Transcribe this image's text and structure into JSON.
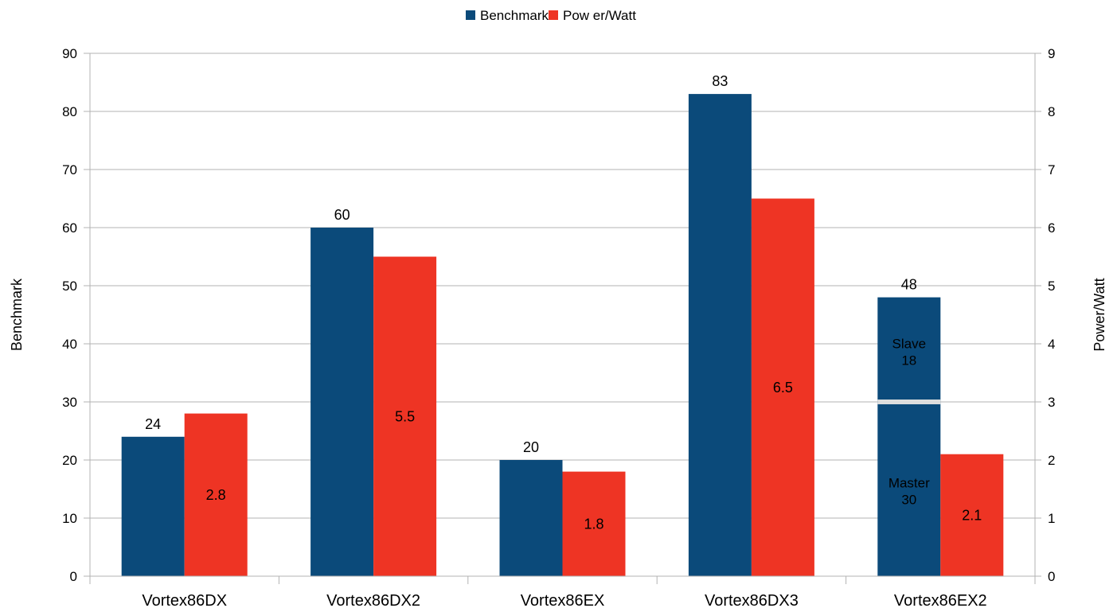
{
  "chart_data": {
    "type": "bar",
    "categories": [
      "Vortex86DX",
      "Vortex86DX2",
      "Vortex86EX",
      "Vortex86DX3",
      "Vortex86EX2"
    ],
    "series": [
      {
        "name": "Benchmark",
        "axis": "left",
        "color": "#0b4a7a",
        "values": [
          24,
          60,
          20,
          83,
          48
        ],
        "labels": [
          "24",
          "60",
          "20",
          "83",
          "48"
        ]
      },
      {
        "name": "Pow er/Watt",
        "axis": "right",
        "color": "#ee3424",
        "values": [
          2.8,
          5.5,
          1.8,
          6.5,
          2.1
        ],
        "labels": [
          "2.8",
          "5.5",
          "1.8",
          "6.5",
          "2.1"
        ]
      }
    ],
    "segments": [
      {
        "category": "Vortex86EX2",
        "series": "Benchmark",
        "parts": [
          {
            "name": "Master",
            "value": 30
          },
          {
            "name": "Slave",
            "value": 18
          }
        ]
      }
    ],
    "ylabel": "Benchmark",
    "y2label": "Power/Watt",
    "ylim": [
      0,
      90
    ],
    "y2lim": [
      0,
      9
    ],
    "yticks": [
      "0",
      "10",
      "20",
      "30",
      "40",
      "50",
      "60",
      "70",
      "80",
      "90"
    ],
    "y2ticks": [
      "0",
      "1",
      "2",
      "3",
      "4",
      "5",
      "6",
      "7",
      "8",
      "9"
    ],
    "grid": true,
    "legend": "top-center"
  },
  "colors": {
    "grid": "#b3b3b3",
    "axis": "#b3b3b3",
    "separator": "#dddddd"
  }
}
